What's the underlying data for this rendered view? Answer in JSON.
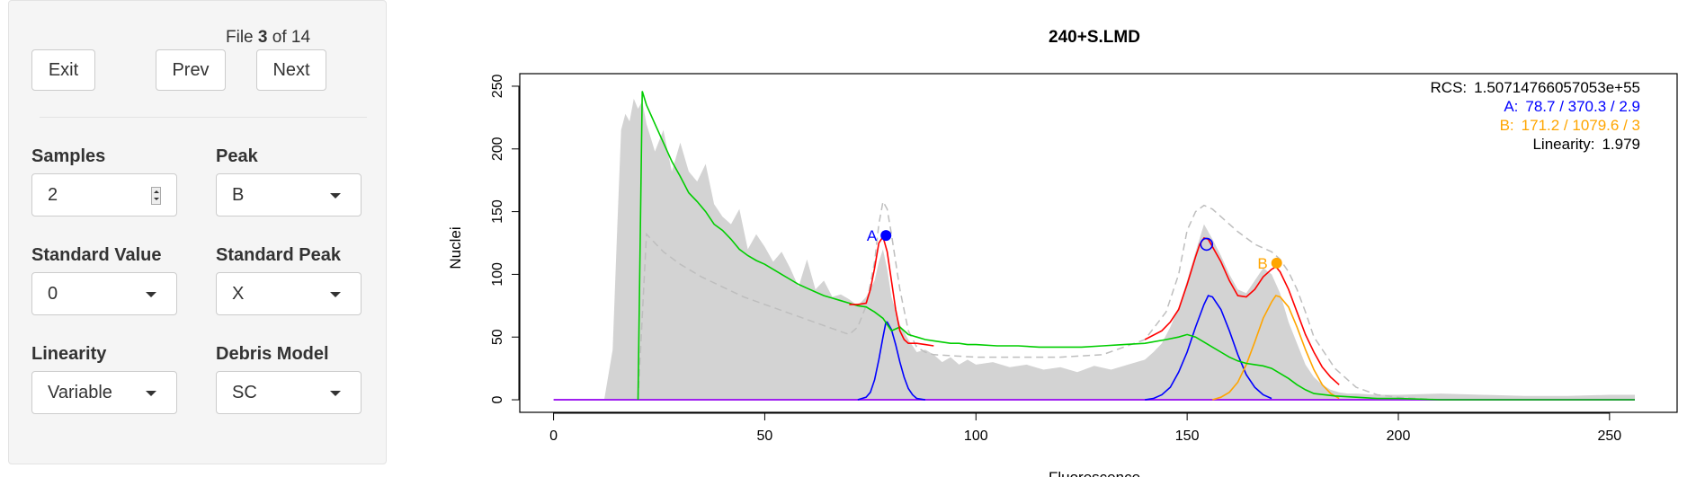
{
  "sidebar": {
    "file_prefix": "File",
    "file_current": "3",
    "file_sep": "of",
    "file_total": "14",
    "exit_label": "Exit",
    "prev_label": "Prev",
    "next_label": "Next",
    "samples_label": "Samples",
    "samples_value": "2",
    "peak_label": "Peak",
    "peak_value": "B",
    "standard_value_label": "Standard Value",
    "standard_value_value": "0",
    "standard_peak_label": "Standard Peak",
    "standard_peak_value": "X",
    "linearity_label": "Linearity",
    "linearity_value": "Variable",
    "debris_model_label": "Debris Model",
    "debris_model_value": "SC"
  },
  "chart_data": {
    "type": "line",
    "title": "240+S.LMD",
    "xlabel": "Fluorescence",
    "ylabel": "Nuclei",
    "xlim": [
      -8,
      266
    ],
    "ylim": [
      -10,
      260
    ],
    "x_ticks": [
      "0",
      "50",
      "100",
      "150",
      "200",
      "250"
    ],
    "y_ticks": [
      "0",
      "50",
      "100",
      "150",
      "200",
      "250"
    ],
    "info": {
      "rcs_label": "RCS:",
      "rcs_value": "1.50714766057053e+55",
      "a_label": "A:",
      "a_value": "78.7 / 370.3 / 2.9",
      "b_label": "B:",
      "b_value": "171.2 / 1079.6 / 3",
      "linearity_label": "Linearity:",
      "linearity_value": "1.979"
    },
    "peak_labels": [
      {
        "label": "A",
        "x": 78.7,
        "y": 131,
        "color": "#0000ff"
      },
      {
        "label": "B",
        "x": 171.2,
        "y": 109,
        "color": "#ffa500"
      }
    ],
    "open_marker": {
      "x": 154.6,
      "y": 124
    },
    "colors": {
      "histogram": "#d3d3d3",
      "dashed": "#bebebe",
      "fit": "#ff0000",
      "debris": "#00cd00",
      "peak_a": "#0000ff",
      "peak_b": "#ffa500",
      "baseline": "#a020f0"
    },
    "series": [
      {
        "key": "histogram",
        "x": [
          12,
          14,
          15,
          16,
          17,
          18,
          19,
          20,
          21,
          22,
          24,
          26,
          28,
          30,
          32,
          34,
          36,
          38,
          40,
          42,
          44,
          46,
          48,
          50,
          52,
          54,
          56,
          58,
          60,
          62,
          64,
          66,
          68,
          70,
          72,
          74,
          76,
          77,
          78,
          79,
          80,
          82,
          84,
          86,
          88,
          90,
          92,
          94,
          96,
          98,
          100,
          104,
          108,
          112,
          116,
          120,
          124,
          128,
          132,
          136,
          140,
          142,
          144,
          146,
          148,
          150,
          152,
          154,
          156,
          158,
          160,
          162,
          164,
          166,
          168,
          170,
          172,
          174,
          176,
          178,
          180,
          182,
          184,
          186,
          188,
          190,
          195,
          200,
          210,
          220,
          230,
          240,
          250,
          256
        ],
        "y": [
          0,
          40,
          130,
          215,
          228,
          222,
          240,
          232,
          238,
          220,
          198,
          215,
          182,
          205,
          182,
          174,
          188,
          156,
          146,
          140,
          152,
          120,
          132,
          122,
          110,
          118,
          105,
          90,
          112,
          88,
          95,
          82,
          84,
          80,
          75,
          82,
          95,
          110,
          120,
          104,
          82,
          60,
          48,
          38,
          40,
          36,
          30,
          34,
          28,
          32,
          28,
          30,
          26,
          28,
          24,
          26,
          22,
          27,
          24,
          28,
          32,
          38,
          45,
          58,
          74,
          95,
          118,
          140,
          128,
          115,
          100,
          88,
          85,
          95,
          105,
          100,
          85,
          62,
          45,
          28,
          18,
          12,
          8,
          6,
          5,
          5,
          4,
          4,
          5,
          4,
          3,
          3,
          4,
          4
        ]
      },
      {
        "key": "dashed",
        "x": [
          20,
          22,
          26,
          30,
          35,
          40,
          45,
          50,
          55,
          60,
          65,
          70,
          72,
          74,
          76,
          77,
          78,
          79,
          80,
          82,
          84,
          86,
          88,
          90,
          95,
          100,
          110,
          120,
          130,
          140,
          145,
          148,
          150,
          152,
          154,
          156,
          158,
          160,
          162,
          164,
          166,
          168,
          170,
          172,
          174,
          176,
          178,
          180,
          185,
          190,
          195,
          200,
          210,
          220,
          230,
          240,
          256
        ],
        "y": [
          0,
          132,
          118,
          108,
          98,
          90,
          82,
          76,
          70,
          64,
          58,
          52,
          58,
          75,
          110,
          140,
          158,
          152,
          132,
          88,
          55,
          42,
          38,
          36,
          35,
          34,
          34,
          34,
          36,
          48,
          70,
          100,
          135,
          150,
          155,
          152,
          146,
          140,
          134,
          129,
          124,
          121,
          118,
          112,
          102,
          88,
          70,
          50,
          25,
          10,
          4,
          2,
          0,
          0,
          0,
          0,
          0
        ]
      },
      {
        "key": "debris",
        "x": [
          20,
          21,
          22,
          24,
          26,
          28,
          30,
          32,
          34,
          36,
          38,
          40,
          42,
          44,
          46,
          48,
          50,
          52,
          54,
          56,
          58,
          60,
          62,
          64,
          66,
          68,
          70,
          72,
          74,
          76,
          78,
          80,
          82,
          84,
          86,
          88,
          90,
          92,
          94,
          96,
          98,
          100,
          105,
          110,
          115,
          120,
          125,
          130,
          135,
          140,
          145,
          148,
          150,
          152,
          154,
          156,
          158,
          160,
          162,
          164,
          166,
          168,
          170,
          172,
          174,
          176,
          178,
          180,
          185,
          190,
          195,
          200,
          210,
          220,
          230,
          240,
          256
        ],
        "y": [
          0,
          246,
          235,
          220,
          205,
          190,
          178,
          165,
          158,
          150,
          140,
          135,
          128,
          120,
          115,
          111,
          108,
          104,
          100,
          96,
          92,
          89,
          86,
          83,
          81,
          79,
          77,
          75,
          74,
          70,
          65,
          55,
          58,
          52,
          50,
          48,
          47,
          46,
          45,
          45,
          44,
          44,
          43,
          43,
          42,
          42,
          42,
          43,
          44,
          45,
          48,
          50,
          52,
          50,
          46,
          42,
          38,
          34,
          31,
          29,
          28,
          27,
          25,
          21,
          17,
          12,
          8,
          5,
          3,
          2,
          1,
          1,
          0,
          0,
          0,
          0,
          0
        ]
      },
      {
        "key": "fit",
        "x": [
          70,
          72,
          74,
          75,
          76,
          77,
          78,
          79,
          80,
          81,
          82,
          83,
          84,
          86,
          88,
          90
        ],
        "y": [
          76,
          76,
          77,
          88,
          105,
          125,
          130,
          118,
          95,
          72,
          55,
          48,
          45,
          45,
          44,
          43
        ]
      },
      {
        "key": "fit2",
        "x": [
          140,
          144,
          146,
          148,
          150,
          152,
          153,
          154,
          155,
          156,
          158,
          160,
          162,
          164,
          166,
          168,
          170,
          171,
          172,
          174,
          176,
          178,
          180,
          182,
          184,
          186
        ],
        "y": [
          48,
          55,
          62,
          72,
          92,
          114,
          124,
          129,
          128,
          122,
          110,
          95,
          83,
          82,
          88,
          98,
          104,
          106,
          102,
          88,
          70,
          52,
          38,
          26,
          18,
          12
        ]
      },
      {
        "key": "peak_a",
        "x": [
          72,
          74,
          75,
          76,
          77,
          78,
          78.7,
          79,
          80,
          81,
          82,
          83,
          84,
          85,
          86,
          88
        ],
        "y": [
          0,
          2,
          6,
          16,
          32,
          50,
          62,
          62,
          56,
          44,
          30,
          18,
          9,
          4,
          1,
          0
        ]
      },
      {
        "key": "peak_b_blue",
        "x": [
          140,
          142,
          144,
          146,
          148,
          150,
          152,
          154,
          155,
          156,
          158,
          160,
          162,
          164,
          166,
          168,
          170
        ],
        "y": [
          0,
          1,
          4,
          10,
          22,
          38,
          58,
          76,
          83,
          82,
          72,
          55,
          36,
          20,
          10,
          4,
          1
        ]
      },
      {
        "key": "peak_b_orange",
        "x": [
          156,
          158,
          160,
          162,
          164,
          166,
          168,
          170,
          171,
          172,
          174,
          176,
          178,
          180,
          182,
          184,
          186
        ],
        "y": [
          0,
          2,
          6,
          14,
          28,
          46,
          65,
          78,
          83,
          82,
          74,
          58,
          40,
          24,
          12,
          5,
          1
        ]
      },
      {
        "key": "baseline",
        "x": [
          0,
          256
        ],
        "y": [
          0,
          0
        ]
      }
    ]
  }
}
